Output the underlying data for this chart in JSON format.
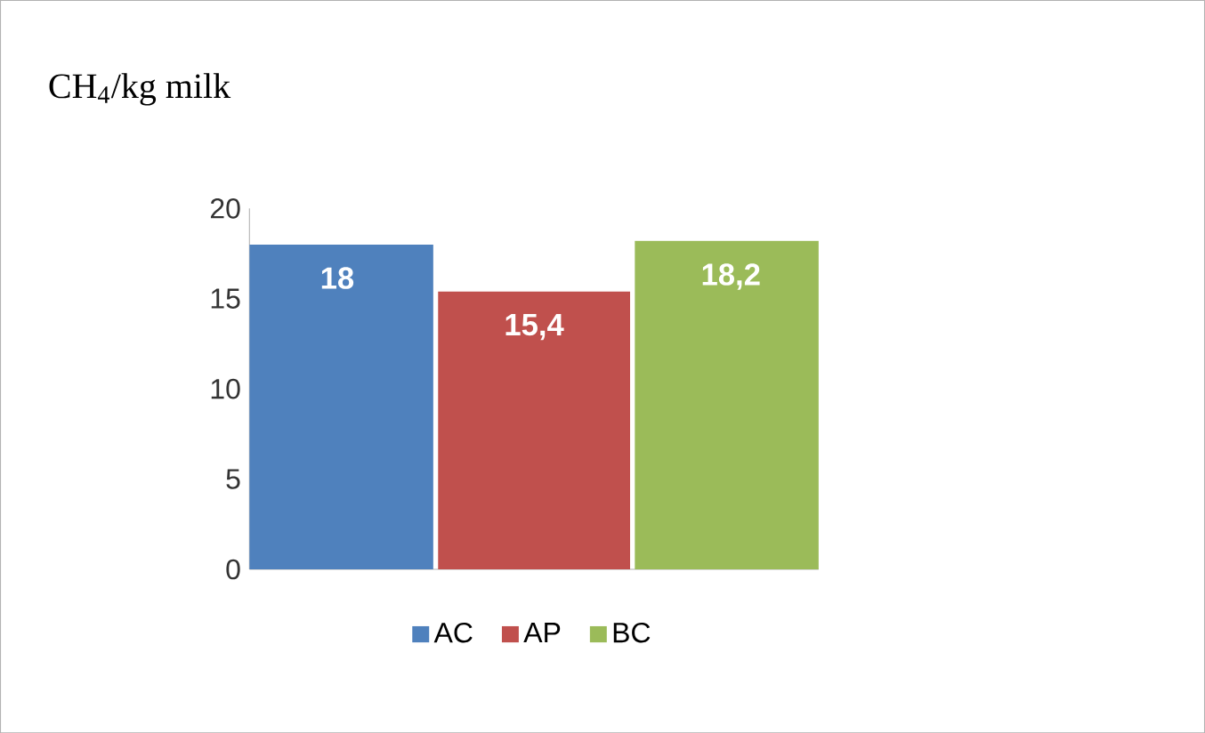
{
  "chart_data": {
    "type": "bar",
    "ylabel": "CH$_{4}$/kg milk",
    "categories": [
      null
    ],
    "series": [
      {
        "name": "AC",
        "color": "#4f81bd",
        "values": [
          18
        ],
        "value_labels": [
          "18"
        ]
      },
      {
        "name": "AP",
        "color": "#c0504d",
        "values": [
          15.4
        ],
        "value_labels": [
          "15,4"
        ]
      },
      {
        "name": "BC",
        "color": "#9bbb59",
        "values": [
          18.2
        ],
        "value_labels": [
          "18,2"
        ]
      }
    ],
    "ylim": [
      0,
      20
    ],
    "yticks": [
      0,
      5,
      10,
      15,
      20
    ],
    "grid": false,
    "legend": "bottom",
    "tick_labels": "y"
  }
}
